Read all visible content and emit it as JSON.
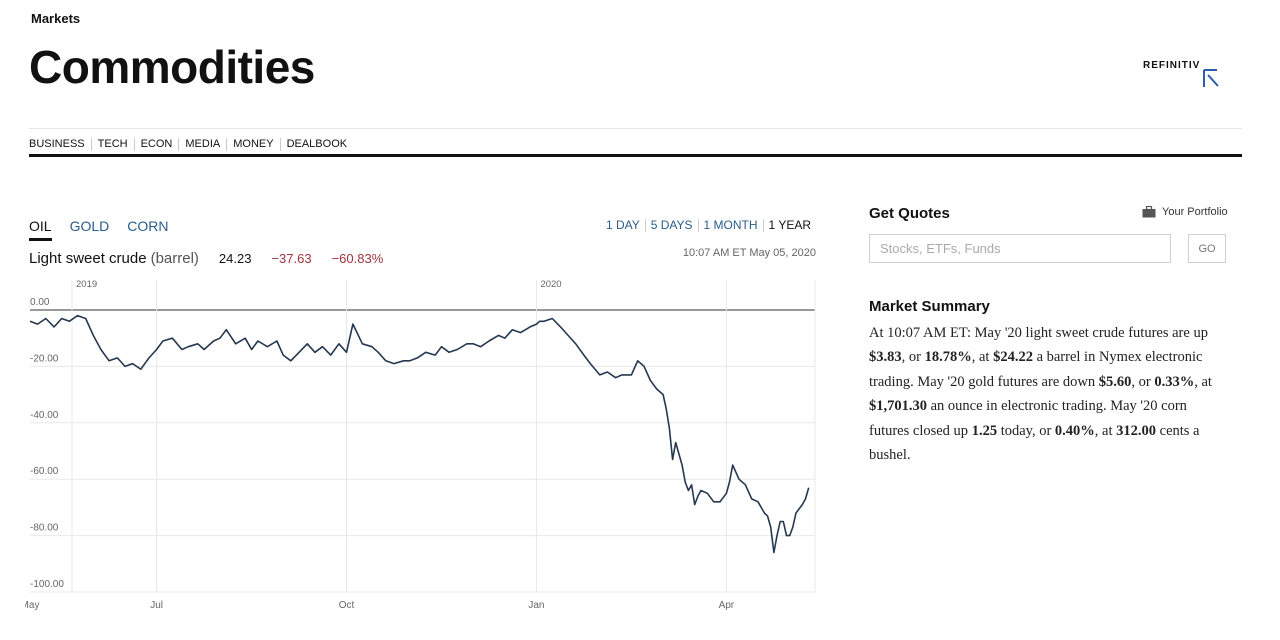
{
  "header": {
    "section": "Markets",
    "title": "Commodities",
    "logo_text": "REFINITIV"
  },
  "nav": {
    "items": [
      "BUSINESS",
      "TECH",
      "ECON",
      "MEDIA",
      "MONEY",
      "DEALBOOK"
    ]
  },
  "commodity_tabs": [
    {
      "label": "OIL",
      "active": true
    },
    {
      "label": "GOLD",
      "active": false
    },
    {
      "label": "CORN",
      "active": false
    }
  ],
  "range_tabs": [
    {
      "label": "1 DAY",
      "active": false
    },
    {
      "label": "5 DAYS",
      "active": false
    },
    {
      "label": "1 MONTH",
      "active": false
    },
    {
      "label": "1 YEAR",
      "active": true
    }
  ],
  "quote": {
    "name": "Light sweet crude",
    "unit": "(barrel)",
    "price": "24.23",
    "change": "−37.63",
    "change_pct": "−60.83%",
    "timestamp": "10:07 AM ET May 05, 2020"
  },
  "chart_data": {
    "type": "line",
    "year_labels": [
      {
        "label": "2019",
        "month_index": 0
      },
      {
        "label": "2020",
        "month_index": 8
      }
    ],
    "x_tick_labels": [
      {
        "label": "May",
        "month_index": 0
      },
      {
        "label": "Jul",
        "month_index": 2
      },
      {
        "label": "Oct",
        "month_index": 5
      },
      {
        "label": "Jan",
        "month_index": 8
      },
      {
        "label": "Apr",
        "month_index": 11
      }
    ],
    "y_tick_labels": [
      "0.00",
      "-20.00",
      "-40.00",
      "-60.00",
      "-80.00",
      "-100.00"
    ],
    "y_ticks": [
      0,
      -20,
      -40,
      -60,
      -80,
      -100
    ],
    "ylim": [
      -100,
      0
    ],
    "xlim": [
      0,
      12.4
    ],
    "series": [
      {
        "color": "#26384f",
        "points": [
          [
            0.0,
            -4
          ],
          [
            0.12,
            -5
          ],
          [
            0.25,
            -3
          ],
          [
            0.38,
            -6
          ],
          [
            0.5,
            -3
          ],
          [
            0.62,
            -4
          ],
          [
            0.75,
            -2
          ],
          [
            0.88,
            -3
          ],
          [
            1.0,
            -9
          ],
          [
            1.12,
            -14
          ],
          [
            1.25,
            -18
          ],
          [
            1.38,
            -17
          ],
          [
            1.5,
            -20
          ],
          [
            1.62,
            -19
          ],
          [
            1.75,
            -21
          ],
          [
            1.88,
            -17
          ],
          [
            2.0,
            -14
          ],
          [
            2.1,
            -11
          ],
          [
            2.25,
            -10
          ],
          [
            2.4,
            -14
          ],
          [
            2.5,
            -13
          ],
          [
            2.65,
            -12
          ],
          [
            2.75,
            -14
          ],
          [
            2.9,
            -11
          ],
          [
            3.0,
            -10
          ],
          [
            3.1,
            -7
          ],
          [
            3.25,
            -12
          ],
          [
            3.4,
            -10
          ],
          [
            3.5,
            -14
          ],
          [
            3.6,
            -11
          ],
          [
            3.75,
            -13
          ],
          [
            3.9,
            -11
          ],
          [
            4.0,
            -16
          ],
          [
            4.12,
            -18
          ],
          [
            4.25,
            -15
          ],
          [
            4.38,
            -12
          ],
          [
            4.5,
            -15
          ],
          [
            4.62,
            -13
          ],
          [
            4.75,
            -16
          ],
          [
            4.88,
            -12
          ],
          [
            5.0,
            -15
          ],
          [
            5.1,
            -5
          ],
          [
            5.25,
            -12
          ],
          [
            5.4,
            -13
          ],
          [
            5.5,
            -15
          ],
          [
            5.62,
            -18
          ],
          [
            5.75,
            -19
          ],
          [
            5.9,
            -18
          ],
          [
            6.0,
            -18
          ],
          [
            6.12,
            -17
          ],
          [
            6.25,
            -15
          ],
          [
            6.4,
            -16
          ],
          [
            6.5,
            -13
          ],
          [
            6.62,
            -15
          ],
          [
            6.75,
            -14
          ],
          [
            6.9,
            -12
          ],
          [
            7.0,
            -12
          ],
          [
            7.12,
            -13
          ],
          [
            7.25,
            -11
          ],
          [
            7.4,
            -9
          ],
          [
            7.5,
            -10
          ],
          [
            7.62,
            -7
          ],
          [
            7.75,
            -8
          ],
          [
            7.9,
            -6
          ],
          [
            8.0,
            -5
          ],
          [
            8.05,
            -4
          ],
          [
            8.12,
            -4
          ],
          [
            8.25,
            -3
          ],
          [
            8.38,
            -6
          ],
          [
            8.5,
            -9
          ],
          [
            8.62,
            -12
          ],
          [
            8.75,
            -16
          ],
          [
            8.85,
            -19
          ],
          [
            9.0,
            -23
          ],
          [
            9.12,
            -22
          ],
          [
            9.25,
            -24
          ],
          [
            9.35,
            -23
          ],
          [
            9.5,
            -23
          ],
          [
            9.6,
            -18
          ],
          [
            9.7,
            -20
          ],
          [
            9.8,
            -25
          ],
          [
            9.9,
            -28
          ],
          [
            10.0,
            -30
          ],
          [
            10.05,
            -35
          ],
          [
            10.1,
            -42
          ],
          [
            10.15,
            -53
          ],
          [
            10.2,
            -47
          ],
          [
            10.3,
            -55
          ],
          [
            10.35,
            -61
          ],
          [
            10.4,
            -64
          ],
          [
            10.45,
            -62
          ],
          [
            10.5,
            -69
          ],
          [
            10.55,
            -66
          ],
          [
            10.6,
            -64
          ],
          [
            10.7,
            -65
          ],
          [
            10.8,
            -68
          ],
          [
            10.9,
            -68
          ],
          [
            11.0,
            -65
          ],
          [
            11.05,
            -61
          ],
          [
            11.1,
            -55
          ],
          [
            11.2,
            -60
          ],
          [
            11.3,
            -62
          ],
          [
            11.4,
            -67
          ],
          [
            11.5,
            -68
          ],
          [
            11.6,
            -72
          ],
          [
            11.65,
            -73
          ],
          [
            11.7,
            -77
          ],
          [
            11.75,
            -86
          ],
          [
            11.8,
            -80
          ],
          [
            11.85,
            -75
          ],
          [
            11.9,
            -75
          ],
          [
            11.95,
            -80
          ],
          [
            12.0,
            -80
          ],
          [
            12.05,
            -77
          ],
          [
            12.1,
            -72
          ],
          [
            12.2,
            -69
          ],
          [
            12.25,
            -67
          ],
          [
            12.3,
            -63
          ]
        ]
      }
    ]
  },
  "quotes": {
    "title": "Get Quotes",
    "portfolio_label": "Your Portfolio",
    "search_placeholder": "Stocks, ETFs, Funds",
    "go_label": "GO"
  },
  "summary": {
    "title": "Market Summary",
    "parts": [
      {
        "t": "At 10:07 AM ET:  May '20 light sweet crude futures are up ",
        "b": false
      },
      {
        "t": "$3.83",
        "b": true
      },
      {
        "t": ", or ",
        "b": false
      },
      {
        "t": "18.78%",
        "b": true
      },
      {
        "t": ", at ",
        "b": false
      },
      {
        "t": "$24.22",
        "b": true
      },
      {
        "t": " a barrel in Nymex electronic trading. May '20 gold futures are down ",
        "b": false
      },
      {
        "t": "$5.60",
        "b": true
      },
      {
        "t": ", or ",
        "b": false
      },
      {
        "t": "0.33%",
        "b": true
      },
      {
        "t": ", at ",
        "b": false
      },
      {
        "t": "$1,701.30",
        "b": true
      },
      {
        "t": " an ounce in electronic trading. May '20 corn futures closed up ",
        "b": false
      },
      {
        "t": "1.25",
        "b": true
      },
      {
        "t": " today, or ",
        "b": false
      },
      {
        "t": "0.40%",
        "b": true
      },
      {
        "t": ", at ",
        "b": false
      },
      {
        "t": "312.00",
        "b": true
      },
      {
        "t": " cents a bushel.",
        "b": false
      }
    ]
  }
}
